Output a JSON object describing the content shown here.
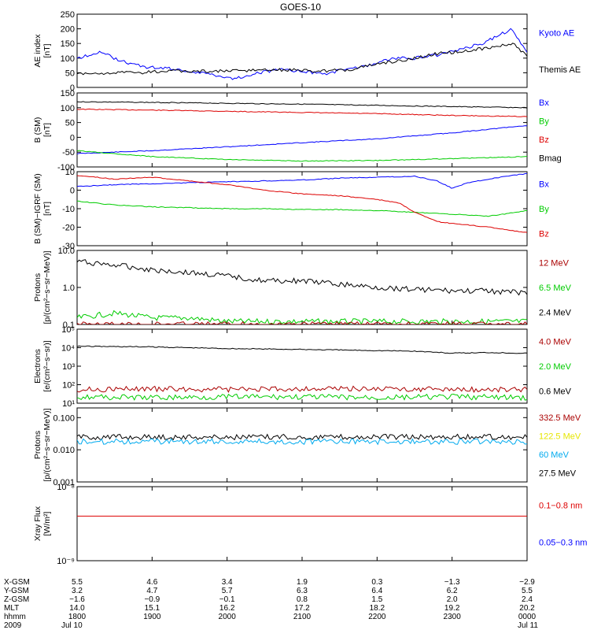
{
  "title": "GOES-10",
  "colors": {
    "black": "#000000",
    "blue": "#0000ff",
    "green": "#00cc00",
    "red": "#dd0000",
    "darkred": "#aa0000",
    "yellow": "#e6e600",
    "cyan": "#00aaee"
  },
  "chart_data": [
    {
      "id": "ae",
      "type": "line",
      "ylabel": [
        "AE index",
        "[nT]"
      ],
      "ylim": [
        0,
        250
      ],
      "yticks": [
        0,
        50,
        100,
        150,
        200,
        250
      ],
      "legend": [
        {
          "label": "Kyoto AE",
          "color": "blue"
        },
        {
          "label": "Themis AE",
          "color": "black"
        }
      ],
      "series": [
        {
          "name": "Kyoto AE",
          "color": "blue",
          "x": [
            18.0,
            18.3,
            18.6,
            18.9,
            19.2,
            19.5,
            19.8,
            20.1,
            20.4,
            20.7,
            21.0,
            21.3,
            21.6,
            21.9,
            22.2,
            22.5,
            22.8,
            23.1,
            23.4,
            23.6,
            23.8,
            24.0
          ],
          "y": [
            100,
            120,
            90,
            70,
            65,
            55,
            45,
            30,
            50,
            60,
            55,
            45,
            65,
            75,
            100,
            100,
            110,
            130,
            150,
            175,
            200,
            120
          ]
        },
        {
          "name": "Themis AE",
          "color": "black",
          "x": [
            18.0,
            18.4,
            18.8,
            19.2,
            19.6,
            20.0,
            20.4,
            20.8,
            21.2,
            21.6,
            22.0,
            22.4,
            22.8,
            23.2,
            23.6,
            23.8,
            24.0
          ],
          "y": [
            45,
            50,
            50,
            55,
            55,
            55,
            60,
            60,
            55,
            60,
            80,
            95,
            115,
            125,
            140,
            150,
            110
          ]
        }
      ]
    },
    {
      "id": "bsm",
      "type": "line",
      "ylabel": [
        "B (SM)",
        "[nT]"
      ],
      "ylim": [
        -100,
        150
      ],
      "yticks": [
        -100,
        -50,
        0,
        50,
        100,
        150
      ],
      "legend": [
        {
          "label": "Bx",
          "color": "blue"
        },
        {
          "label": "By",
          "color": "green"
        },
        {
          "label": "Bz",
          "color": "red"
        },
        {
          "label": "Bmag",
          "color": "black"
        }
      ],
      "series": [
        {
          "name": "Bx",
          "color": "blue",
          "x": [
            18.0,
            19.0,
            20.0,
            21.0,
            22.0,
            23.0,
            24.0
          ],
          "y": [
            -55,
            -45,
            -32,
            -18,
            -5,
            15,
            40
          ]
        },
        {
          "name": "By",
          "color": "green",
          "x": [
            18.0,
            19.0,
            20.0,
            21.0,
            22.0,
            23.0,
            24.0
          ],
          "y": [
            -45,
            -65,
            -75,
            -80,
            -78,
            -72,
            -65
          ]
        },
        {
          "name": "Bz",
          "color": "red",
          "x": [
            18.0,
            19.0,
            20.0,
            21.0,
            22.0,
            23.0,
            24.0
          ],
          "y": [
            95,
            92,
            88,
            84,
            80,
            74,
            70
          ]
        },
        {
          "name": "Bmag",
          "color": "black",
          "x": [
            18.0,
            19.0,
            20.0,
            21.0,
            22.0,
            23.0,
            24.0
          ],
          "y": [
            120,
            118,
            115,
            112,
            108,
            104,
            100
          ]
        }
      ]
    },
    {
      "id": "bdiff",
      "type": "line",
      "ylabel": [
        "B (SM)−IGRF (SM)",
        "[nT]"
      ],
      "ylim": [
        -30,
        10
      ],
      "yticks": [
        -30,
        -20,
        -10,
        0,
        10
      ],
      "legend": [
        {
          "label": "Bx",
          "color": "blue"
        },
        {
          "label": "By",
          "color": "green"
        },
        {
          "label": "Bz",
          "color": "red"
        }
      ],
      "series": [
        {
          "name": "Bx",
          "color": "blue",
          "x": [
            18.0,
            18.5,
            19.0,
            19.5,
            20.0,
            20.5,
            21.0,
            21.5,
            22.0,
            22.5,
            22.8,
            23.0,
            23.2,
            23.5,
            23.8,
            24.0
          ],
          "y": [
            2,
            3,
            3.5,
            4,
            4.5,
            5,
            5.5,
            6.5,
            7,
            7.5,
            5,
            1,
            4,
            6,
            8,
            9
          ]
        },
        {
          "name": "By",
          "color": "green",
          "x": [
            18.0,
            18.5,
            19.0,
            19.5,
            20.0,
            20.5,
            21.0,
            21.5,
            22.0,
            22.5,
            23.0,
            23.5,
            24.0
          ],
          "y": [
            -6,
            -8,
            -9,
            -9.5,
            -10,
            -10,
            -10.5,
            -10.5,
            -11,
            -12,
            -13,
            -14,
            -11
          ]
        },
        {
          "name": "Bz",
          "color": "red",
          "x": [
            18.0,
            18.5,
            19.0,
            19.5,
            20.0,
            20.5,
            21.0,
            21.5,
            22.0,
            22.3,
            22.5,
            22.8,
            23.0,
            23.5,
            24.0
          ],
          "y": [
            8,
            6,
            7,
            5,
            3,
            0,
            -2,
            -3,
            -5,
            -7,
            -12,
            -17,
            -18,
            -20,
            -23
          ]
        }
      ]
    },
    {
      "id": "protons1",
      "type": "line",
      "ylabel": [
        "Protons",
        "[p/(cm²−s−sr−MeV)]"
      ],
      "ylog": true,
      "ylim": [
        0.1,
        10.0
      ],
      "yticks": [
        0.1,
        1.0,
        10.0
      ],
      "ytick_labels": [
        "0.1",
        "1.0",
        "10.0"
      ],
      "legend": [
        {
          "label": "12 MeV",
          "color": "darkred"
        },
        {
          "label": "6.5 MeV",
          "color": "green"
        },
        {
          "label": "2.4 MeV",
          "color": "black"
        }
      ],
      "series": [
        {
          "name": "2.4 MeV",
          "color": "black",
          "x": [
            18.0,
            18.5,
            19.0,
            19.5,
            20.0,
            20.5,
            21.0,
            21.5,
            22.0,
            22.5,
            23.0,
            23.5,
            24.0
          ],
          "y": [
            5,
            4,
            3,
            2.5,
            2,
            1.5,
            1.5,
            1.2,
            1,
            0.9,
            0.8,
            0.8,
            0.7
          ]
        },
        {
          "name": "6.5 MeV",
          "color": "green",
          "x": [
            18.0,
            18.5,
            19.0,
            19.5,
            20.0,
            20.5,
            21.0,
            21.5,
            22.0,
            22.5,
            23.0,
            23.5,
            24.0
          ],
          "y": [
            0.15,
            0.2,
            0.15,
            0.15,
            0.12,
            0.12,
            0.12,
            0.12,
            0.12,
            0.12,
            0.12,
            0.12,
            0.12
          ]
        },
        {
          "name": "12 MeV",
          "color": "darkred",
          "x": [
            18.0,
            18.5,
            19.0,
            19.5,
            20.0,
            20.5,
            21.0,
            21.5,
            22.0,
            22.5,
            23.0,
            23.5,
            24.0
          ],
          "y": [
            0.1,
            0.1,
            0.1,
            0.1,
            0.1,
            0.1,
            0.1,
            0.1,
            0.1,
            0.1,
            0.1,
            0.1,
            0.1
          ]
        }
      ]
    },
    {
      "id": "electrons",
      "type": "line",
      "ylabel": [
        "Electrons",
        "[e/(cm²−s−sr)]"
      ],
      "ylog": true,
      "ylim": [
        10,
        100000
      ],
      "yticks": [
        10,
        100,
        1000,
        10000,
        100000
      ],
      "ytick_labels": [
        "10¹",
        "10²",
        "10³",
        "10⁴",
        "10⁵"
      ],
      "legend": [
        {
          "label": "4.0 MeV",
          "color": "darkred"
        },
        {
          "label": "2.0 MeV",
          "color": "green"
        },
        {
          "label": "0.6 MeV",
          "color": "black"
        }
      ],
      "series": [
        {
          "name": "0.6 MeV",
          "color": "black",
          "x": [
            18.0,
            19.0,
            20.0,
            21.0,
            22.0,
            22.5,
            23.0,
            23.5,
            24.0
          ],
          "y": [
            12000,
            11000,
            9000,
            8000,
            7000,
            6500,
            5000,
            5500,
            5000
          ]
        },
        {
          "name": "4.0 MeV",
          "color": "darkred",
          "x": [
            18.0,
            19.0,
            20.0,
            21.0,
            22.0,
            23.0,
            24.0
          ],
          "y": [
            55,
            60,
            55,
            60,
            60,
            55,
            55
          ]
        },
        {
          "name": "2.0 MeV",
          "color": "green",
          "x": [
            18.0,
            19.0,
            20.0,
            21.0,
            22.0,
            23.0,
            24.0
          ],
          "y": [
            22,
            20,
            22,
            22,
            20,
            22,
            20
          ]
        }
      ]
    },
    {
      "id": "protons2",
      "type": "line",
      "ylabel": [
        "Protons",
        "[p/(cm²−s−sr−MeV)]"
      ],
      "ylog": true,
      "ylim": [
        0.001,
        0.2
      ],
      "yticks": [
        0.001,
        0.01,
        0.1
      ],
      "ytick_labels": [
        "0.001",
        "0.010",
        "0.100"
      ],
      "legend": [
        {
          "label": "332.5 MeV",
          "color": "darkred"
        },
        {
          "label": "122.5 MeV",
          "color": "yellow"
        },
        {
          "label": "60 MeV",
          "color": "cyan"
        },
        {
          "label": "27.5 MeV",
          "color": "black"
        }
      ],
      "series": [
        {
          "name": "27.5 MeV",
          "color": "black",
          "x": [
            18.0,
            19.0,
            20.0,
            21.0,
            22.0,
            23.0,
            24.0
          ],
          "y": [
            0.025,
            0.025,
            0.025,
            0.025,
            0.025,
            0.025,
            0.025
          ]
        },
        {
          "name": "60 MeV",
          "color": "cyan",
          "x": [
            18.0,
            19.0,
            20.0,
            21.0,
            22.0,
            23.0,
            24.0
          ],
          "y": [
            0.018,
            0.018,
            0.018,
            0.018,
            0.018,
            0.018,
            0.018
          ]
        }
      ]
    },
    {
      "id": "xray",
      "type": "line",
      "ylabel": [
        "Xray Flux",
        "[W/m²]"
      ],
      "ylog": true,
      "ylim": [
        1e-09,
        1e-08
      ],
      "yticks": [
        1e-09,
        1e-08
      ],
      "ytick_labels": [
        "10⁻⁹",
        "10⁻⁸"
      ],
      "legend": [
        {
          "label": "0.1−0.8 nm",
          "color": "red"
        },
        {
          "label": "0.05−0.3 nm",
          "color": "blue"
        }
      ],
      "series": [
        {
          "name": "0.1−0.8 nm",
          "color": "red",
          "x": [
            18.0,
            24.0
          ],
          "y": [
            4e-09,
            4e-09
          ]
        }
      ]
    }
  ],
  "x_axis": {
    "range": [
      18.0,
      24.0
    ],
    "row_labels": [
      "X-GSM",
      "Y-GSM",
      "Z-GSM",
      "MLT",
      "hhmm",
      "2009"
    ],
    "columns": [
      {
        "x": 18.0,
        "values": [
          "5.5",
          "3.2",
          "−1.6",
          "14.0",
          "1800",
          "Jul 10"
        ]
      },
      {
        "x": 19.0,
        "values": [
          "4.6",
          "4.7",
          "−0.9",
          "15.1",
          "1900",
          ""
        ]
      },
      {
        "x": 20.0,
        "values": [
          "3.4",
          "5.7",
          "−0.1",
          "16.2",
          "2000",
          ""
        ]
      },
      {
        "x": 21.0,
        "values": [
          "1.9",
          "6.3",
          "0.8",
          "17.2",
          "2100",
          ""
        ]
      },
      {
        "x": 22.0,
        "values": [
          "0.3",
          "6.4",
          "1.5",
          "18.2",
          "2200",
          ""
        ]
      },
      {
        "x": 23.0,
        "values": [
          "−1.3",
          "6.2",
          "2.0",
          "19.2",
          "2300",
          ""
        ]
      },
      {
        "x": 24.0,
        "values": [
          "−2.9",
          "5.5",
          "2.4",
          "20.2",
          "0000",
          "Jul 11"
        ]
      }
    ]
  }
}
